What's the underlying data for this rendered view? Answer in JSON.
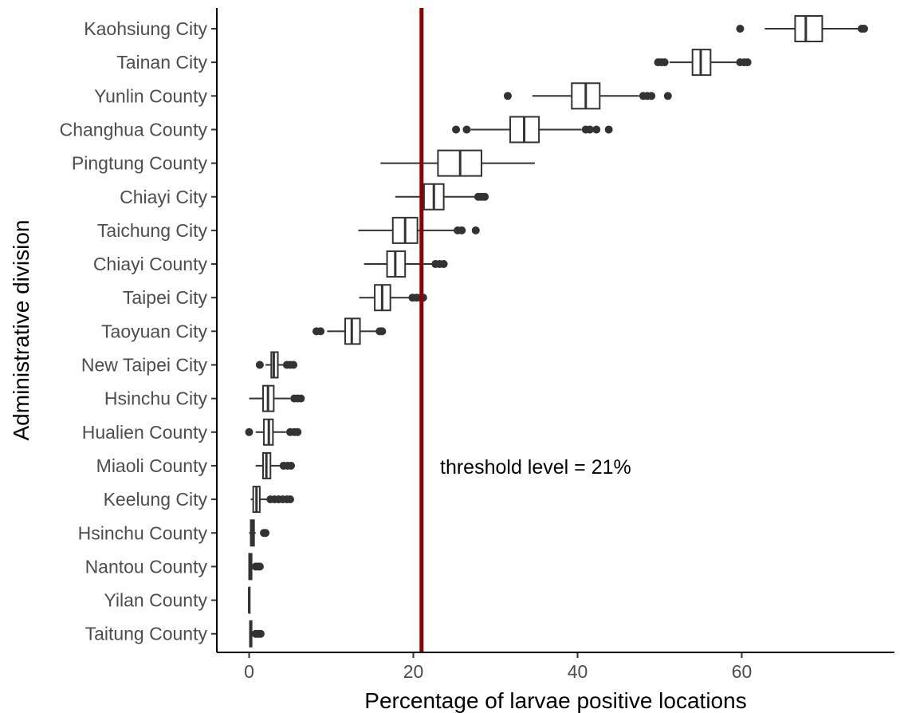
{
  "chart_data": {
    "type": "boxplot",
    "orientation": "horizontal",
    "xlabel": "Percentage of larvae positive locations",
    "ylabel": "Administrative division",
    "xlim": [
      -4,
      78
    ],
    "xticks": [
      0,
      20,
      40,
      60
    ],
    "grid": false,
    "legend": "none",
    "threshold": {
      "value": 21,
      "label": "threshold level = 21%",
      "color": "#8b0000"
    },
    "colors": {
      "box_stroke": "#333333",
      "box_fill": "#ffffff",
      "outlier": "#333333"
    },
    "categories": [
      "Kaohsiung City",
      "Tainan City",
      "Yunlin County",
      "Changhua County",
      "Pingtung County",
      "Chiayi City",
      "Taichung City",
      "Chiayi County",
      "Taipei City",
      "Taoyuan City",
      "New Taipei City",
      "Hsinchu City",
      "Hualien County",
      "Miaoli County",
      "Keelung City",
      "Hsinchu County",
      "Nantou County",
      "Yilan County",
      "Taitung County"
    ],
    "series": [
      {
        "category": "Kaohsiung City",
        "min": 62.8,
        "q1": 66.5,
        "median": 67.8,
        "q3": 69.8,
        "max": 74.5,
        "outliers": [
          59.8,
          74.6,
          74.9
        ]
      },
      {
        "category": "Tainan City",
        "min": 51.2,
        "q1": 54.0,
        "median": 55.0,
        "q3": 56.2,
        "max": 59.5,
        "outliers": [
          49.8,
          50.2,
          50.6,
          59.8,
          60.3,
          60.7
        ]
      },
      {
        "category": "Yunlin County",
        "min": 34.5,
        "q1": 39.3,
        "median": 41.0,
        "q3": 42.7,
        "max": 47.5,
        "outliers": [
          31.5,
          48.0,
          48.5,
          49.0,
          51.0
        ]
      },
      {
        "category": "Changhua County",
        "min": 27.0,
        "q1": 31.8,
        "median": 33.5,
        "q3": 35.3,
        "max": 40.5,
        "outliers": [
          25.2,
          26.5,
          41.0,
          41.5,
          42.3,
          43.8
        ]
      },
      {
        "category": "Pingtung County",
        "min": 16.0,
        "q1": 23.0,
        "median": 25.7,
        "q3": 28.3,
        "max": 34.8,
        "outliers": []
      },
      {
        "category": "Chiayi City",
        "min": 17.8,
        "q1": 21.3,
        "median": 22.5,
        "q3": 23.7,
        "max": 27.5,
        "outliers": [
          27.9,
          28.3,
          28.7
        ]
      },
      {
        "category": "Taichung City",
        "min": 13.3,
        "q1": 17.5,
        "median": 19.0,
        "q3": 20.5,
        "max": 25.0,
        "outliers": [
          25.4,
          25.9,
          27.6
        ]
      },
      {
        "category": "Chiayi County",
        "min": 14.0,
        "q1": 16.8,
        "median": 17.8,
        "q3": 19.0,
        "max": 22.3,
        "outliers": [
          22.7,
          23.2,
          23.7
        ]
      },
      {
        "category": "Taipei City",
        "min": 13.4,
        "q1": 15.3,
        "median": 16.2,
        "q3": 17.2,
        "max": 19.5,
        "outliers": [
          19.9,
          20.4,
          20.9,
          21.2
        ]
      },
      {
        "category": "Taoyuan City",
        "min": 9.5,
        "q1": 11.7,
        "median": 12.5,
        "q3": 13.5,
        "max": 15.5,
        "outliers": [
          8.2,
          8.7,
          15.9,
          16.2
        ]
      },
      {
        "category": "New Taipei City",
        "min": 2.0,
        "q1": 2.7,
        "median": 3.0,
        "q3": 3.5,
        "max": 4.2,
        "outliers": [
          1.3,
          4.6,
          5.0,
          5.4
        ]
      },
      {
        "category": "Hsinchu City",
        "min": 0.0,
        "q1": 1.7,
        "median": 2.3,
        "q3": 3.0,
        "max": 5.0,
        "outliers": [
          5.5,
          5.9,
          6.3
        ]
      },
      {
        "category": "Hualien County",
        "min": 0.8,
        "q1": 1.8,
        "median": 2.4,
        "q3": 2.9,
        "max": 4.5,
        "outliers": [
          0.0,
          5.0,
          5.5,
          5.9
        ]
      },
      {
        "category": "Miaoli County",
        "min": 0.8,
        "q1": 1.7,
        "median": 2.1,
        "q3": 2.6,
        "max": 3.8,
        "outliers": [
          4.2,
          4.7,
          5.1
        ]
      },
      {
        "category": "Keelung City",
        "min": 0.2,
        "q1": 0.5,
        "median": 0.9,
        "q3": 1.3,
        "max": 2.2,
        "outliers": [
          2.6,
          3.1,
          3.6,
          4.1,
          4.6,
          5.0
        ]
      },
      {
        "category": "Hsinchu County",
        "min": 0.0,
        "q1": 0.2,
        "median": 0.4,
        "q3": 0.6,
        "max": 0.8,
        "outliers": [
          1.8,
          2.0
        ]
      },
      {
        "category": "Nantou County",
        "min": 0.0,
        "q1": 0.0,
        "median": 0.1,
        "q3": 0.3,
        "max": 0.5,
        "outliers": [
          0.8,
          1.1,
          1.3
        ]
      },
      {
        "category": "Yilan County",
        "min": 0.0,
        "q1": 0.0,
        "median": 0.0,
        "q3": 0.0,
        "max": 0.0,
        "outliers": []
      },
      {
        "category": "Taitung County",
        "min": 0.0,
        "q1": 0.1,
        "median": 0.2,
        "q3": 0.3,
        "max": 0.5,
        "outliers": [
          0.8,
          1.1,
          1.4
        ]
      }
    ]
  }
}
